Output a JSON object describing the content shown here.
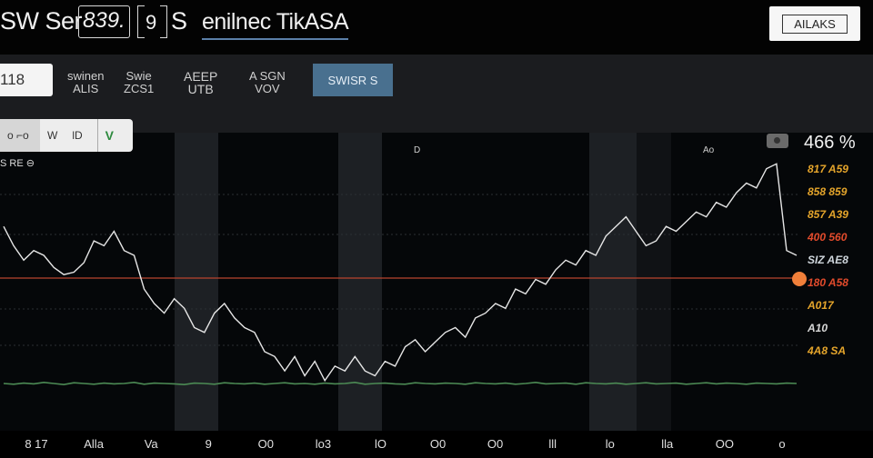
{
  "header": {
    "title_a": "SW Ser",
    "boxed": "839.",
    "small": "9",
    "title_b": "S",
    "underlined": "enilnec TikASA",
    "button": "AILAKS"
  },
  "toolbar": {
    "input_value": "118",
    "items": [
      {
        "line1": "swinen",
        "line2": "ALIS"
      },
      {
        "line1": "Swie",
        "line2": "ZCS1"
      },
      {
        "line1": "AEEP",
        "line2": "UTB"
      },
      {
        "line1": "A SGN",
        "line2": "VOV"
      }
    ],
    "active_tab": "SWISR S",
    "segments": [
      "o ⌐o",
      "W",
      "lD",
      "V"
    ],
    "sub_label": "S RE ⊖"
  },
  "chart_data": {
    "type": "line",
    "title": "",
    "top_right_value": "466 %",
    "markers": [
      "D",
      "Ao"
    ],
    "right_labels": [
      {
        "text": "817 A59",
        "color": "#e5a52b"
      },
      {
        "text": "858 859",
        "color": "#e5a52b"
      },
      {
        "text": "857 A39",
        "color": "#e5a52b"
      },
      {
        "text": "400 560",
        "color": "#e24b2c"
      },
      {
        "text": "SIZ AE8",
        "color": "#cfd6dc"
      },
      {
        "text": "180 A58",
        "color": "#e24b2c"
      },
      {
        "text": "A017",
        "color": "#e5a52b"
      },
      {
        "text": "A10",
        "color": "#d8d8d8"
      },
      {
        "text": "4A8 SA",
        "color": "#e5a52b"
      }
    ],
    "x_ticks": [
      "8 17",
      "Alla",
      "Va",
      "9",
      "O0",
      "lo3",
      "lO",
      "O0",
      "O0",
      "lll",
      "lo",
      "lla",
      "OO",
      "o"
    ],
    "price": [
      0.72,
      0.64,
      0.58,
      0.62,
      0.6,
      0.55,
      0.52,
      0.53,
      0.57,
      0.66,
      0.64,
      0.7,
      0.62,
      0.6,
      0.46,
      0.4,
      0.36,
      0.42,
      0.38,
      0.3,
      0.28,
      0.36,
      0.4,
      0.34,
      0.3,
      0.28,
      0.2,
      0.18,
      0.12,
      0.18,
      0.1,
      0.16,
      0.08,
      0.14,
      0.12,
      0.18,
      0.12,
      0.1,
      0.16,
      0.14,
      0.22,
      0.25,
      0.2,
      0.24,
      0.28,
      0.3,
      0.26,
      0.34,
      0.36,
      0.4,
      0.38,
      0.46,
      0.44,
      0.5,
      0.48,
      0.54,
      0.58,
      0.56,
      0.62,
      0.6,
      0.68,
      0.72,
      0.76,
      0.7,
      0.64,
      0.66,
      0.72,
      0.7,
      0.74,
      0.78,
      0.76,
      0.82,
      0.8,
      0.86,
      0.9,
      0.88,
      0.96,
      0.98,
      0.62,
      0.6
    ],
    "volume": [
      0.5,
      0.46,
      0.52,
      0.48,
      0.56,
      0.5,
      0.44,
      0.54,
      0.5,
      0.46,
      0.52,
      0.48,
      0.5,
      0.56,
      0.46,
      0.52,
      0.5,
      0.48,
      0.44,
      0.52,
      0.5,
      0.46,
      0.54,
      0.5,
      0.48,
      0.52,
      0.46,
      0.5,
      0.54,
      0.48,
      0.5,
      0.46,
      0.52,
      0.48,
      0.5,
      0.56,
      0.46,
      0.5,
      0.52,
      0.48,
      0.46,
      0.54,
      0.5,
      0.48,
      0.52,
      0.5,
      0.46,
      0.54,
      0.5,
      0.48,
      0.52,
      0.46,
      0.5,
      0.56,
      0.48,
      0.5,
      0.52,
      0.46,
      0.54,
      0.5,
      0.48,
      0.52,
      0.46,
      0.5,
      0.54,
      0.48,
      0.5,
      0.52,
      0.46,
      0.5,
      0.54,
      0.48,
      0.52,
      0.5,
      0.46,
      0.52,
      0.5,
      0.48,
      0.52,
      0.5
    ],
    "ylim": [
      0,
      1
    ],
    "grid": true,
    "colors": {
      "price": "#e6e6e6",
      "volume": "#4c8a54",
      "hline": "#b9442e",
      "dot": "#f07f3a",
      "band": "#1d2024"
    }
  }
}
